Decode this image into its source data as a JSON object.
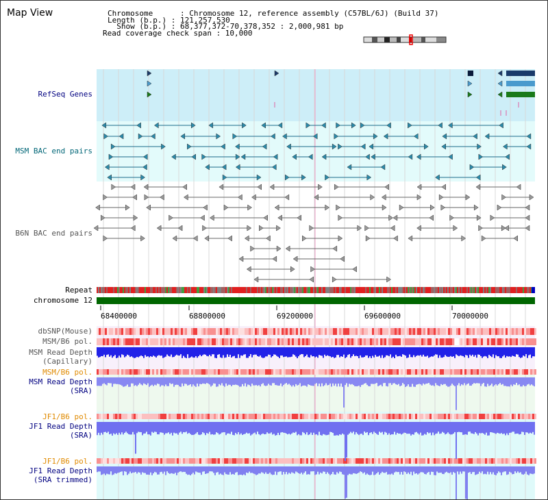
{
  "view_title": "Map View",
  "info": {
    "chromosome_line": "Chromosome      : Chromosome 12, reference assembly (C57BL/6J) (Build 37)",
    "length_line": "Length (b.p.) : 121,257,530",
    "show_line": "  Show (b.p.) : 68,377,372-70,378,352 : 2,000,981 bp",
    "coverage_line": "Read coverage check span : 10,000"
  },
  "tracks": {
    "refseq": "RefSeq Genes",
    "msm_bac": "MSM BAC end pairs",
    "b6n_bac": "B6N BAC end pairs",
    "repeat": "Repeat",
    "chromosome": "chromosome 12",
    "dbsnp": "dbSNP(Mouse)",
    "msm_b6_pol_1": "MSM/B6 pol.",
    "msm_depth_cap_1": "MSM Read Depth",
    "msm_depth_cap_2": "(Capillary)",
    "msm_b6_pol_2": "MSM/B6 pol.",
    "msm_depth_sra_1": "MSM Read Depth",
    "msm_depth_sra_2": "(SRA)",
    "jf1_b6_pol_1": "JF1/B6 pol.",
    "jf1_depth_sra_1": "JF1 Read Depth",
    "jf1_depth_sra_2": "(SRA)",
    "jf1_b6_pol_2": "JF1/B6 pol.",
    "jf1_depth_trim_1": "JF1 Read Depth",
    "jf1_depth_trim_2": "(SRA trimmed)"
  },
  "axis": {
    "ticks": [
      "68400000",
      "68800000",
      "69200000",
      "69600000",
      "70000000"
    ]
  },
  "colors": {
    "refseq_bg": "#cdeef8",
    "bac_bg": "#e3fbfb",
    "navy_label": "#000080",
    "teal_label": "#006677",
    "gray_label": "#555555",
    "orange_label": "#e08a00",
    "chromosome_bar": "#006600",
    "depth_blue": "#2020e0",
    "depth_light": "#8080f0"
  }
}
